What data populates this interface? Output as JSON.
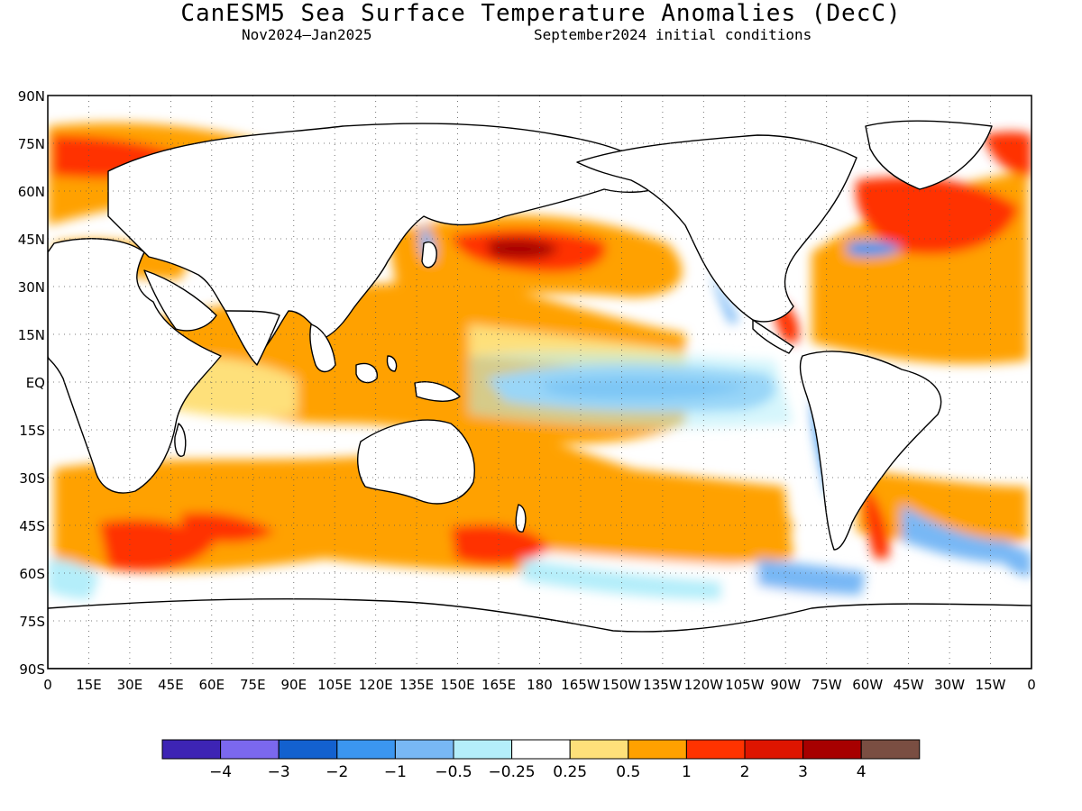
{
  "title": "CanESM5 Sea Surface Temperature Anomalies (DecC)",
  "subtitle_period": "Nov2024–Jan2025",
  "subtitle_init": "September2024 initial conditions",
  "lat_labels": [
    "90N",
    "75N",
    "60N",
    "45N",
    "30N",
    "15N",
    "EQ",
    "15S",
    "30S",
    "45S",
    "60S",
    "75S",
    "90S"
  ],
  "lon_labels": [
    "0",
    "15E",
    "30E",
    "45E",
    "60E",
    "75E",
    "90E",
    "105E",
    "120E",
    "135E",
    "150E",
    "165E",
    "180",
    "165W",
    "150W",
    "135W",
    "120W",
    "105W",
    "90W",
    "75W",
    "60W",
    "45W",
    "30W",
    "15W",
    "0"
  ],
  "colorbar": {
    "colors": [
      "#3d24b4",
      "#7b68ee",
      "#1361cf",
      "#3b96f0",
      "#78b8f5",
      "#b4eefa",
      "#ffffff",
      "#fee07a",
      "#ffa100",
      "#ff3300",
      "#de1500",
      "#a70000",
      "#7a4e42"
    ],
    "labels": [
      "−4",
      "−3",
      "−2",
      "−1",
      "−0.5",
      "−0.25",
      "0.25",
      "0.5",
      "1",
      "2",
      "3",
      "4"
    ]
  }
}
